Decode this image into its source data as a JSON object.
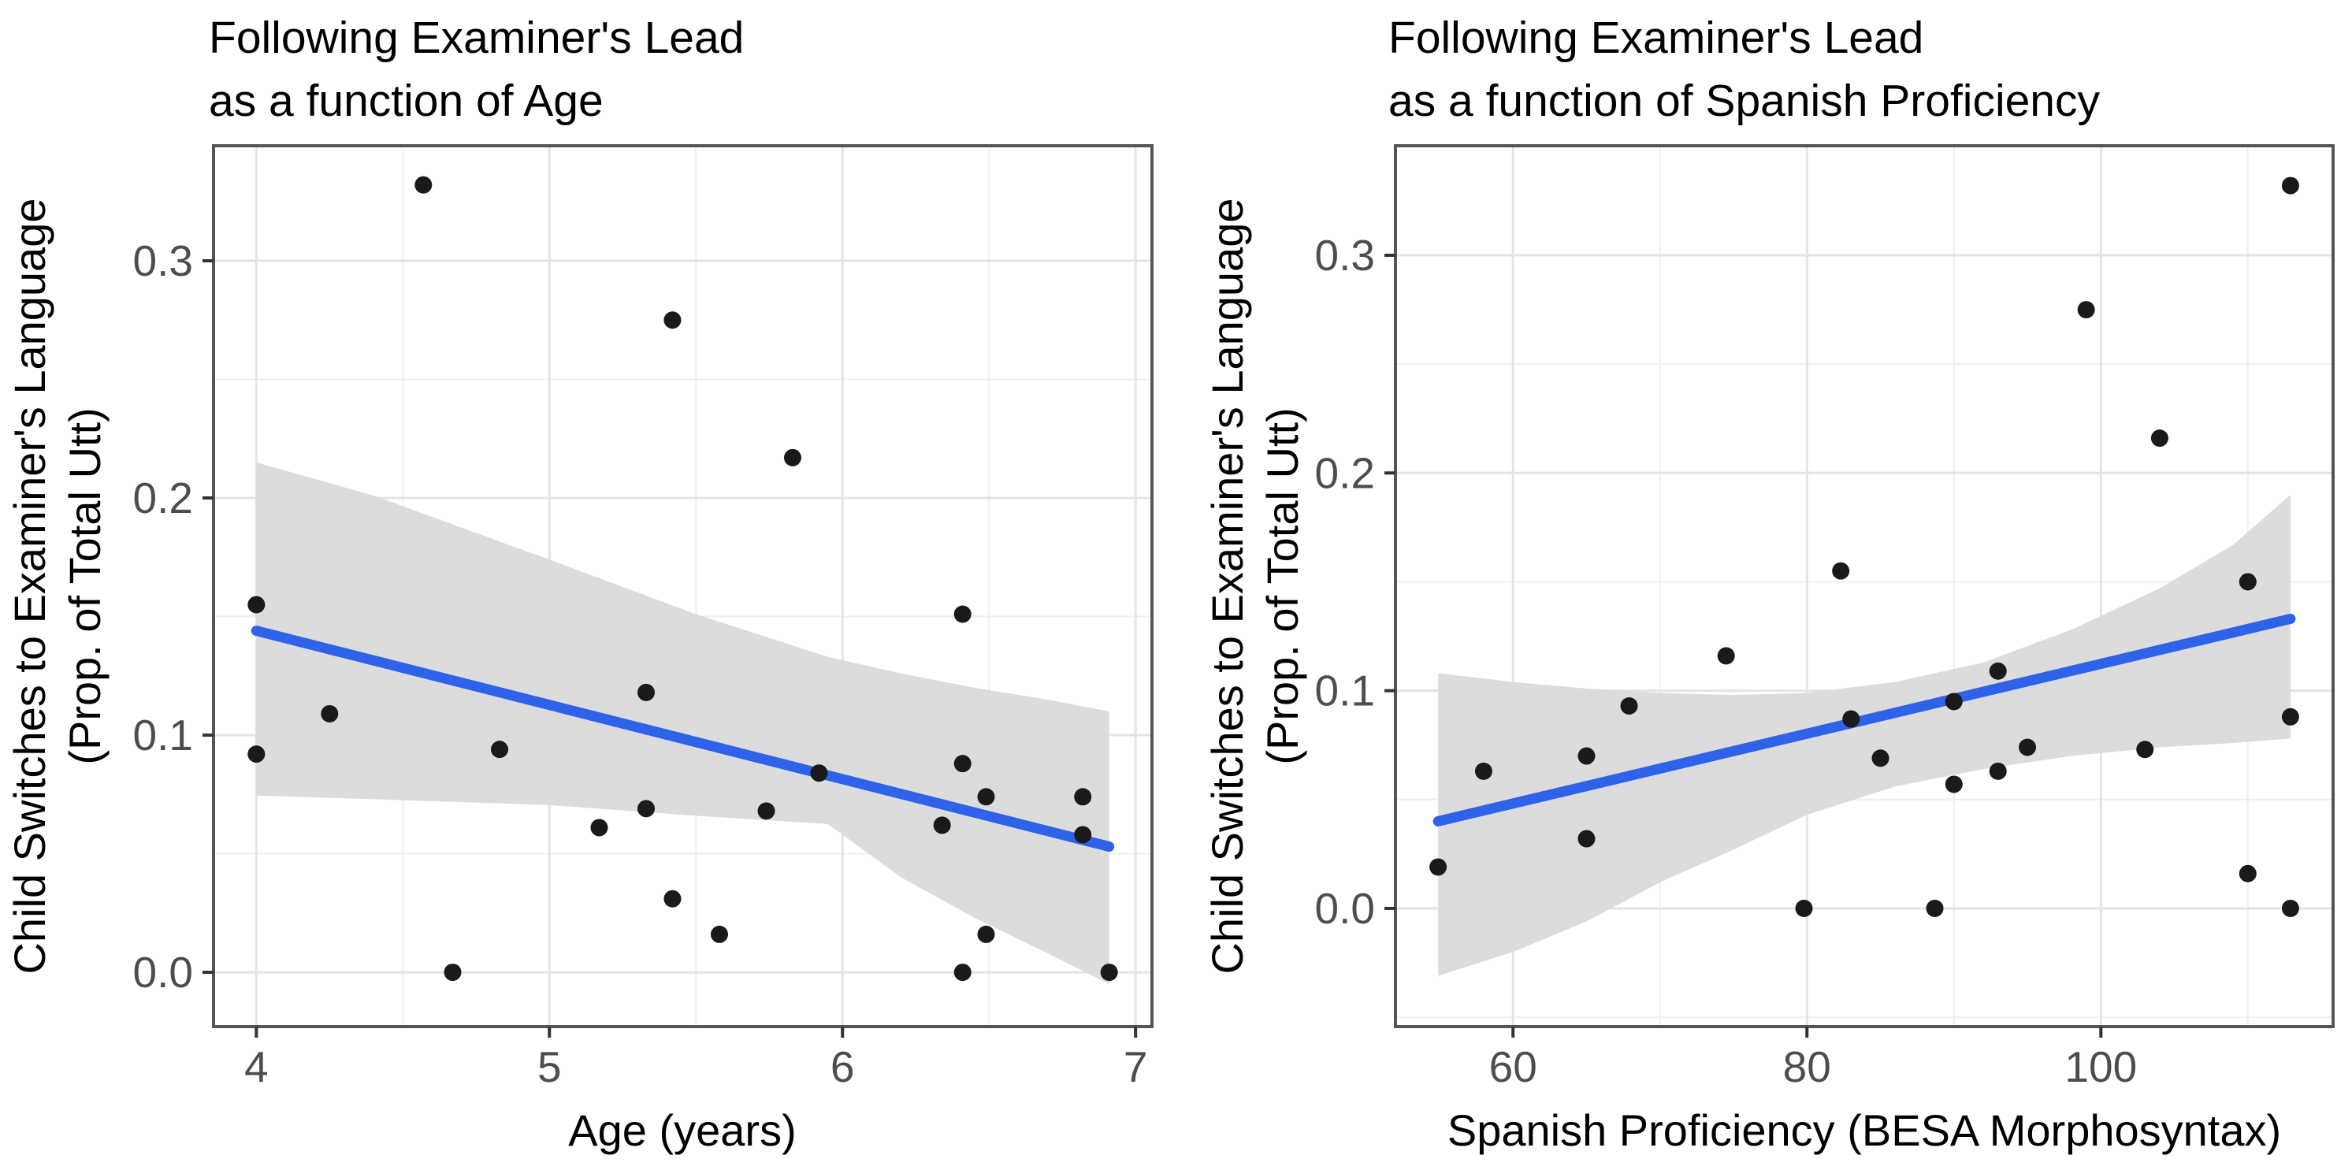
{
  "figure_background": "#ffffff",
  "style": {
    "point_color": "#1a1a1a",
    "line_color": "#2e62e8",
    "ribbon_color": "#dcdcdc",
    "major_grid_color": "#e4e4e4",
    "minor_grid_color": "#efefef",
    "panel_border_color": "#555555",
    "tick_color": "#333333",
    "tick_label_color": "#4d4d4d"
  },
  "chart_data": [
    {
      "type": "scatter",
      "title_line1": "Following Examiner's Lead",
      "title_line2": "as a function of Age",
      "xlabel": "Age (years)",
      "ylabel_line1": "Child Switches to Examiner's Language",
      "ylabel_line2": "(Prop. of Total Utt)",
      "xlim": [
        3.854,
        7.056
      ],
      "ylim": [
        -0.0229,
        0.3485
      ],
      "x_ticks": [
        4,
        5,
        6,
        7
      ],
      "x_tick_labels": [
        "4",
        "5",
        "6",
        "7"
      ],
      "x_minor_ticks": [
        4.5,
        5.5,
        6.5
      ],
      "y_ticks": [
        0.0,
        0.1,
        0.2,
        0.3
      ],
      "y_tick_labels": [
        "0.0",
        "0.1",
        "0.2",
        "0.3"
      ],
      "y_minor_ticks": [
        0.05,
        0.15,
        0.25
      ],
      "grid": true,
      "legend": false,
      "points": [
        [
          4.0,
          0.155
        ],
        [
          4.0,
          0.092
        ],
        [
          4.25,
          0.109
        ],
        [
          4.57,
          0.332
        ],
        [
          4.67,
          0.0
        ],
        [
          4.83,
          0.094
        ],
        [
          5.17,
          0.061
        ],
        [
          5.33,
          0.118
        ],
        [
          5.33,
          0.069
        ],
        [
          5.42,
          0.275
        ],
        [
          5.42,
          0.031
        ],
        [
          5.58,
          0.016
        ],
        [
          5.74,
          0.068
        ],
        [
          5.83,
          0.217
        ],
        [
          5.92,
          0.084
        ],
        [
          6.34,
          0.062
        ],
        [
          6.41,
          0.151
        ],
        [
          6.41,
          0.088
        ],
        [
          6.41,
          0.0
        ],
        [
          6.49,
          0.016
        ],
        [
          6.49,
          0.074
        ],
        [
          6.82,
          0.074
        ],
        [
          6.82,
          0.058
        ],
        [
          6.91,
          0.0
        ]
      ],
      "regression_line": {
        "x": [
          4.0,
          6.91
        ],
        "y": [
          0.144,
          0.053
        ]
      },
      "ci_ribbon": {
        "x": [
          4.0,
          4.4,
          5.0,
          5.5,
          5.95,
          6.2,
          6.45,
          6.7,
          6.91
        ],
        "upper": [
          0.215,
          0.201,
          0.174,
          0.151,
          0.133,
          0.126,
          0.12,
          0.115,
          0.11
        ],
        "lower": [
          0.0745,
          0.073,
          0.0705,
          0.066,
          0.0625,
          0.04,
          0.023,
          0.008,
          -0.005
        ]
      }
    },
    {
      "type": "scatter",
      "title_line1": "Following Examiner's Lead",
      "title_line2": "as a function of Spanish Proficiency",
      "xlabel": "Spanish Proficiency (BESA Morphosyntax)",
      "ylabel_line1": "Child Switches to Examiner's Language",
      "ylabel_line2": "(Prop. of Total Utt)",
      "xlim": [
        52.0,
        115.8
      ],
      "ylim": [
        -0.0543,
        0.3503
      ],
      "x_ticks": [
        60,
        80,
        100
      ],
      "x_tick_labels": [
        "60",
        "80",
        "100"
      ],
      "x_minor_ticks": [
        70,
        90,
        110
      ],
      "y_ticks": [
        0.0,
        0.1,
        0.2,
        0.3
      ],
      "y_tick_labels": [
        "0.0",
        "0.1",
        "0.2",
        "0.3"
      ],
      "y_minor_ticks": [
        -0.05,
        0.05,
        0.15,
        0.25
      ],
      "grid": true,
      "legend": false,
      "points": [
        [
          54.9,
          0.019
        ],
        [
          58.0,
          0.063
        ],
        [
          65.0,
          0.07
        ],
        [
          65.0,
          0.032
        ],
        [
          67.9,
          0.093
        ],
        [
          74.5,
          0.116
        ],
        [
          79.8,
          0.0
        ],
        [
          82.3,
          0.155
        ],
        [
          83.0,
          0.087
        ],
        [
          85.0,
          0.069
        ],
        [
          88.7,
          0.0
        ],
        [
          90.0,
          0.095
        ],
        [
          90.0,
          0.057
        ],
        [
          93.0,
          0.109
        ],
        [
          93.0,
          0.063
        ],
        [
          95.0,
          0.074
        ],
        [
          99.0,
          0.275
        ],
        [
          103.0,
          0.073
        ],
        [
          104.0,
          0.216
        ],
        [
          110.0,
          0.15
        ],
        [
          110.0,
          0.016
        ],
        [
          112.9,
          0.332
        ],
        [
          112.9,
          0.088
        ],
        [
          112.9,
          0.0
        ]
      ],
      "regression_line": {
        "x": [
          54.9,
          112.9
        ],
        "y": [
          0.04,
          0.133
        ]
      },
      "ci_ribbon": {
        "x": [
          54.9,
          60,
          65,
          70,
          75,
          80,
          86,
          92,
          98,
          104,
          109,
          112.9
        ],
        "upper": [
          0.108,
          0.104,
          0.101,
          0.099,
          0.098,
          0.099,
          0.104,
          0.113,
          0.128,
          0.147,
          0.167,
          0.19
        ],
        "lower": [
          -0.031,
          -0.02,
          -0.006,
          0.012,
          0.027,
          0.043,
          0.056,
          0.064,
          0.07,
          0.074,
          0.076,
          0.078
        ]
      }
    }
  ]
}
